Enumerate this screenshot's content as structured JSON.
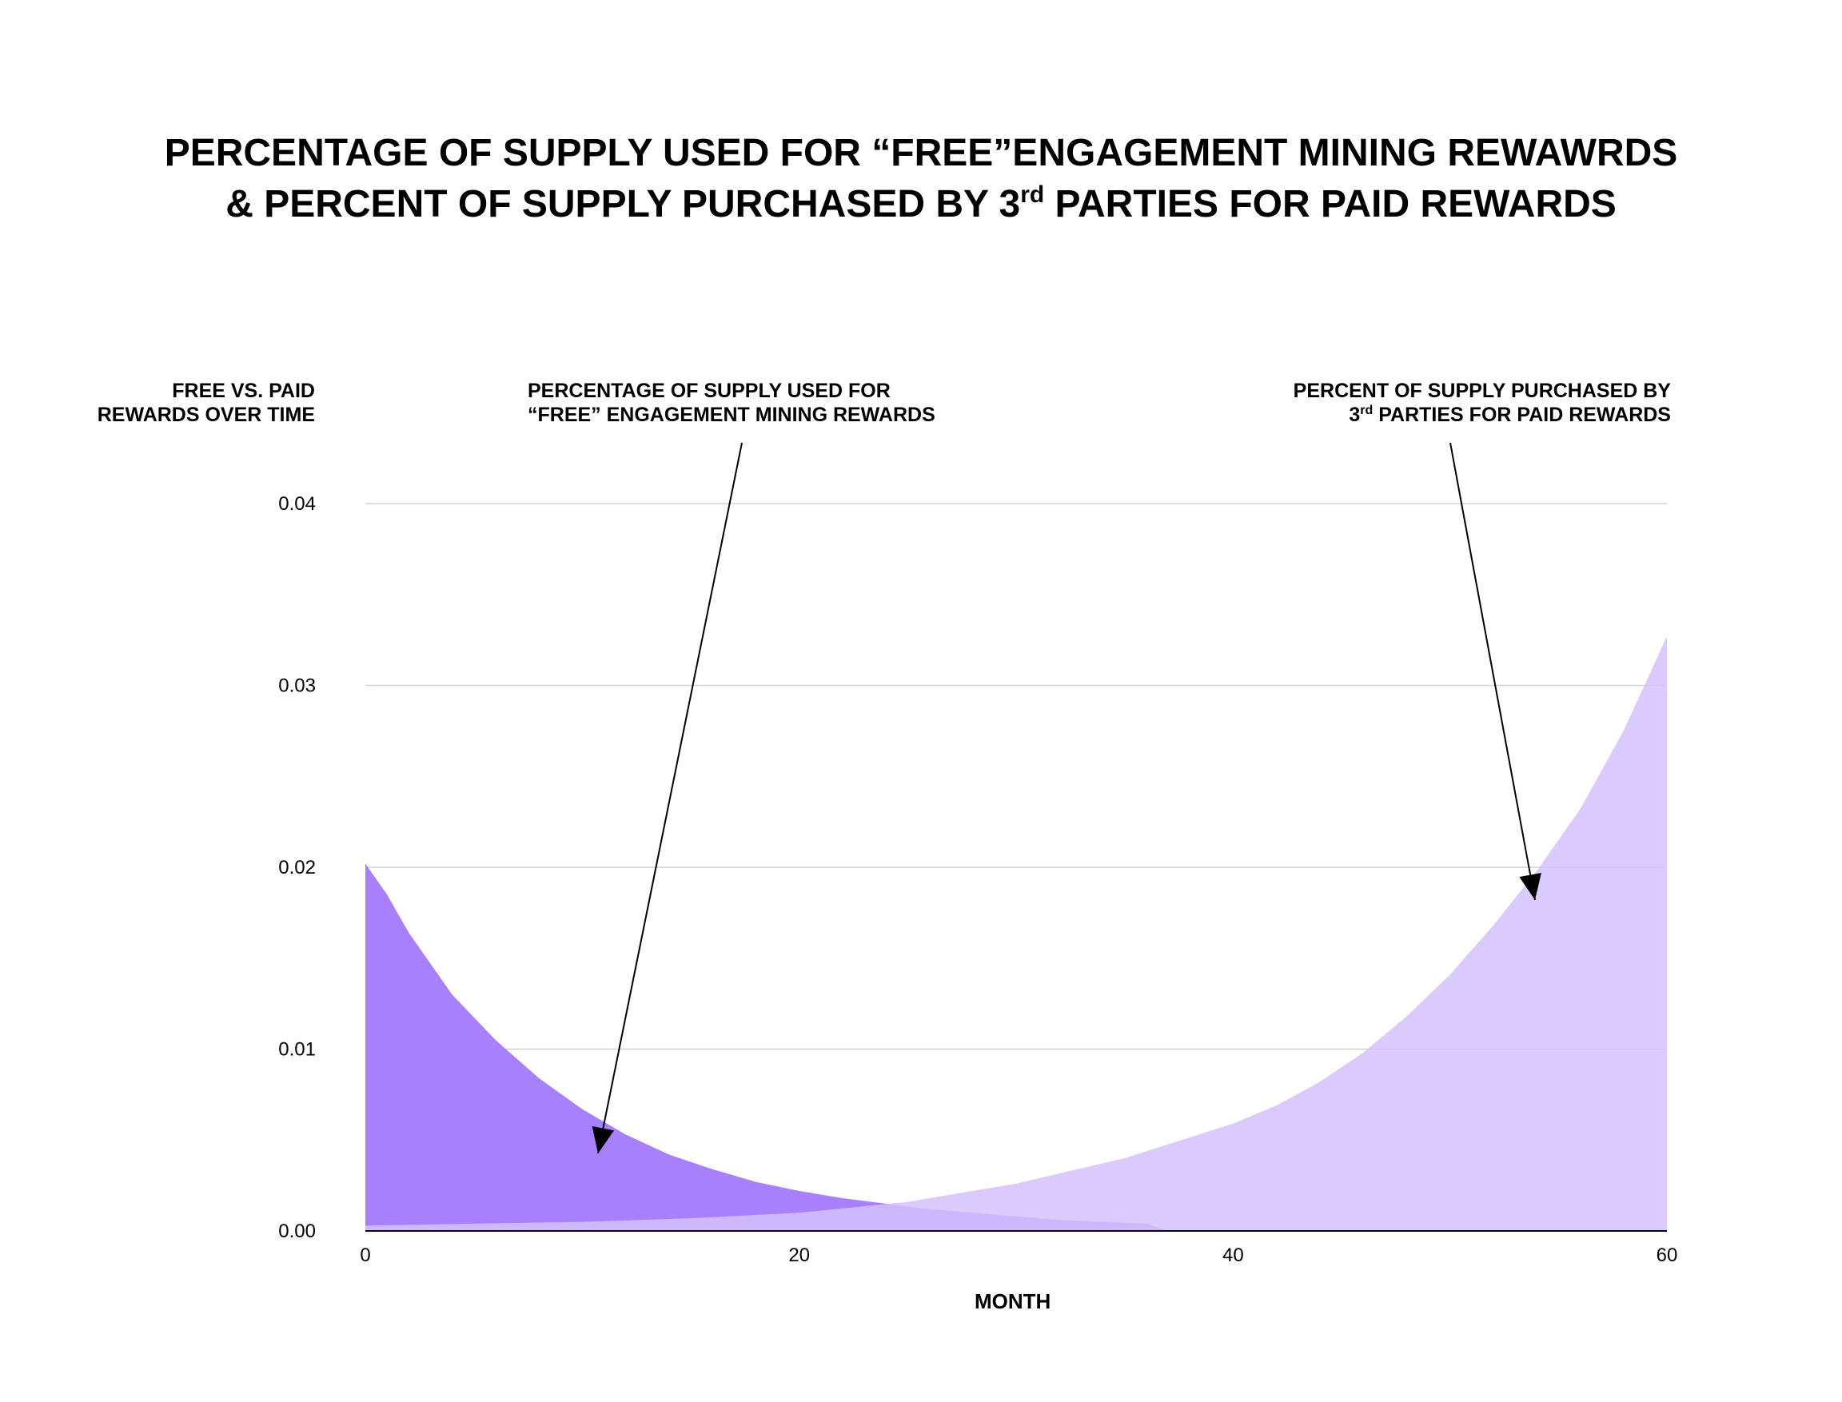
{
  "title_line1": "PERCENTAGE OF SUPPLY USED FOR “FREE”ENGAGEMENT MINING REWAWRDS",
  "title_line2_pre": "& PERCENT OF SUPPLY PURCHASED BY 3",
  "title_line2_sup": "rd",
  "title_line2_post": " PARTIES FOR PAID REWARDS",
  "ylabel_line1": "FREE VS. PAID",
  "ylabel_line2": "REWARDS OVER TIME",
  "annotation_free_line1": "PERCENTAGE OF SUPPLY USED FOR",
  "annotation_free_line2": "“FREE” ENGAGEMENT MINING REWARDS",
  "annotation_paid_line1": "PERCENT OF SUPPLY PURCHASED BY",
  "annotation_paid_line2_pre": "3",
  "annotation_paid_line2_sup": "rd",
  "annotation_paid_line2_post": " PARTIES FOR PAID REWARDS",
  "xlabel": "MONTH",
  "chart_data": {
    "type": "area",
    "x_range": [
      0,
      60
    ],
    "ylim": [
      0,
      0.04
    ],
    "x_ticks": [
      "0",
      "20",
      "40",
      "60"
    ],
    "y_ticks": [
      "0.00",
      "0.01",
      "0.02",
      "0.03",
      "0.04"
    ],
    "grid": true,
    "series": [
      {
        "color": "#a880fd",
        "x": [
          0,
          1,
          2,
          4,
          6,
          8,
          10,
          12,
          14,
          16,
          18,
          20,
          22,
          24,
          26,
          28,
          30,
          32,
          34,
          36,
          37
        ],
        "values": [
          0.0202,
          0.0185,
          0.0164,
          0.013,
          0.0105,
          0.0084,
          0.0067,
          0.0053,
          0.0042,
          0.0034,
          0.0027,
          0.0022,
          0.0018,
          0.0015,
          0.0012,
          0.001,
          0.0008,
          0.0006,
          0.0005,
          0.0004,
          0.0
        ]
      },
      {
        "color": "#d5c2fd",
        "x": [
          0,
          5,
          10,
          15,
          20,
          25,
          30,
          35,
          40,
          42,
          44,
          46,
          48,
          50,
          52,
          54,
          56,
          58,
          60
        ],
        "values": [
          0.0003,
          0.0004,
          0.0005,
          0.0007,
          0.001,
          0.0016,
          0.0026,
          0.004,
          0.0059,
          0.0069,
          0.0082,
          0.0098,
          0.0118,
          0.0141,
          0.0168,
          0.0198,
          0.0232,
          0.0275,
          0.0327
        ]
      }
    ]
  }
}
